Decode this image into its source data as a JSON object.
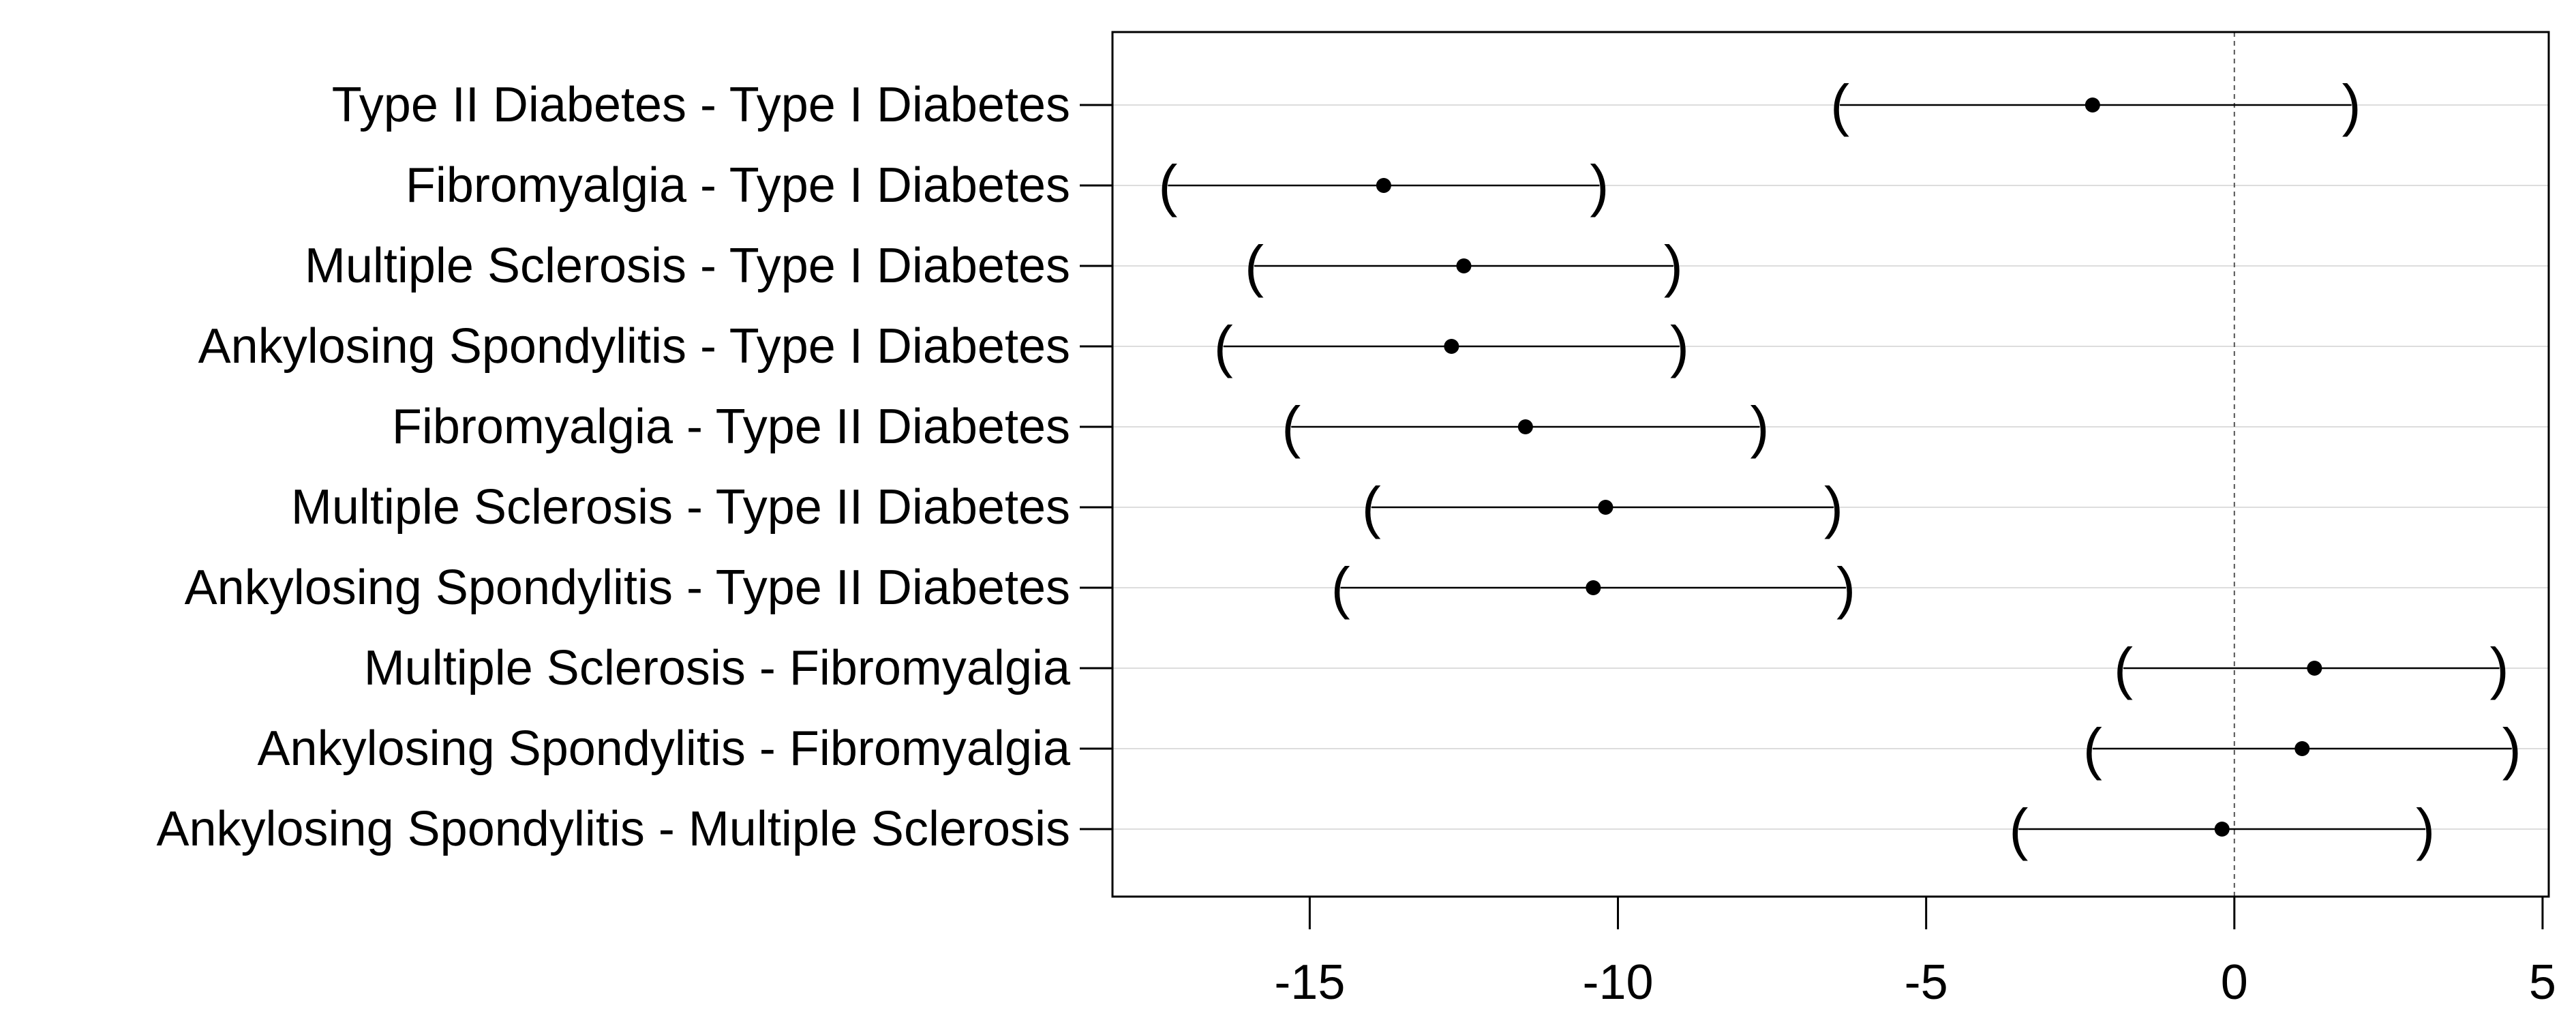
{
  "chart_data": {
    "type": "scatter",
    "title": "",
    "xlabel": "",
    "ylabel": "",
    "xlim": [
      -18.2,
      5.1
    ],
    "x_ticks": [
      {
        "value": -15,
        "label": "-15"
      },
      {
        "value": -10,
        "label": "-10"
      },
      {
        "value": -5,
        "label": "-5"
      },
      {
        "value": 0,
        "label": "0"
      },
      {
        "value": 5,
        "label": "5"
      }
    ],
    "reference_line": 0,
    "grid": "horizontal",
    "bracket_left": "(",
    "bracket_right": ")",
    "comparisons": [
      {
        "label": "Type II Diabetes - Type I Diabetes",
        "estimate": -2.3,
        "lower": -6.4,
        "upper": 1.9
      },
      {
        "label": "Fibromyalgia - Type I Diabetes",
        "estimate": -13.8,
        "lower": -17.3,
        "upper": -10.3
      },
      {
        "label": "Multiple Sclerosis - Type I Diabetes",
        "estimate": -12.5,
        "lower": -15.9,
        "upper": -9.1
      },
      {
        "label": "Ankylosing Spondylitis - Type I Diabetes",
        "estimate": -12.7,
        "lower": -16.4,
        "upper": -9.0
      },
      {
        "label": "Fibromyalgia - Type II Diabetes",
        "estimate": -11.5,
        "lower": -15.3,
        "upper": -7.7
      },
      {
        "label": "Multiple Sclerosis - Type II Diabetes",
        "estimate": -10.2,
        "lower": -14.0,
        "upper": -6.5
      },
      {
        "label": "Ankylosing Spondylitis - Type II Diabetes",
        "estimate": -10.4,
        "lower": -14.5,
        "upper": -6.3
      },
      {
        "label": "Multiple Sclerosis - Fibromyalgia",
        "estimate": 1.3,
        "lower": -1.8,
        "upper": 4.3
      },
      {
        "label": "Ankylosing Spondylitis - Fibromyalgia",
        "estimate": 1.1,
        "lower": -2.3,
        "upper": 4.5
      },
      {
        "label": "Ankylosing Spondylitis - Multiple Sclerosis",
        "estimate": -0.2,
        "lower": -3.5,
        "upper": 3.1
      }
    ]
  }
}
